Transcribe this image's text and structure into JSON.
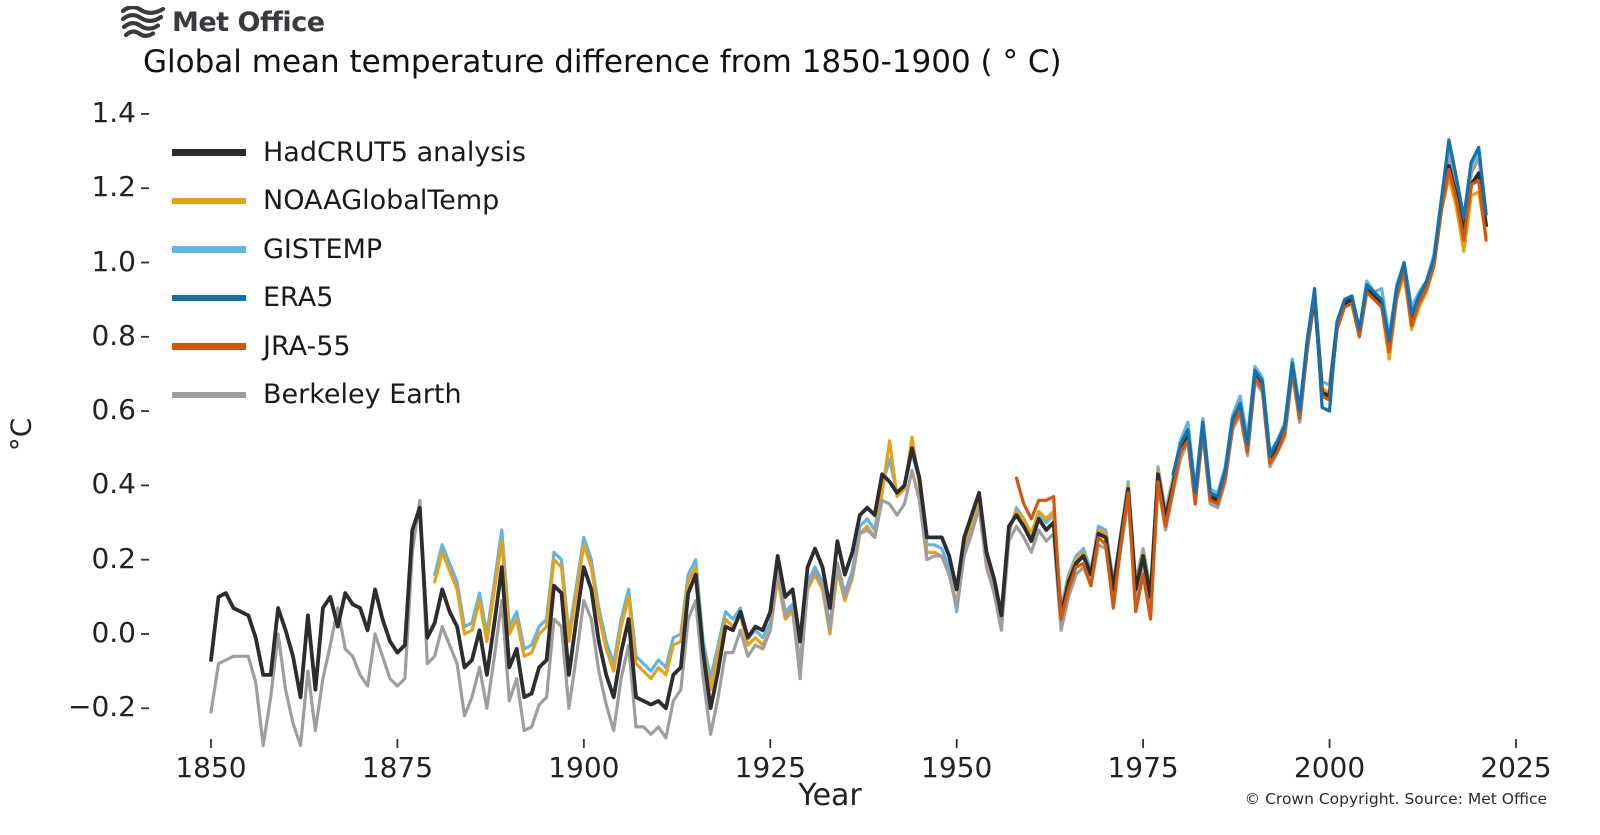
{
  "logo": {
    "brand": "Met Office"
  },
  "header": {
    "title": "Global mean temperature difference from 1850-1900 ( ° C)"
  },
  "footer": {
    "copyright": "© Crown Copyright. Source: Met Office"
  },
  "chart_data": {
    "type": "line",
    "title": "Global mean temperature difference from 1850-1900 ( ° C)",
    "xlabel": "Year",
    "ylabel": "°C",
    "grid": false,
    "legend_position": "upper left",
    "xlim": [
      1845,
      2027
    ],
    "ylim": [
      -0.32,
      1.42
    ],
    "x_ticks": [
      1850,
      1875,
      1900,
      1925,
      1950,
      1975,
      2000,
      2025
    ],
    "y_ticks": [
      1.4,
      1.2,
      1.0,
      0.8,
      0.6,
      0.4,
      0.2,
      0.0,
      -0.2
    ],
    "series": [
      {
        "name": "HadCRUT5 analysis",
        "color": "#2d2d30",
        "start_year": 1850,
        "values": [
          -0.07,
          0.1,
          0.11,
          0.07,
          0.06,
          0.05,
          -0.01,
          -0.11,
          -0.11,
          0.07,
          0.01,
          -0.06,
          -0.17,
          0.05,
          -0.15,
          0.07,
          0.1,
          0.02,
          0.11,
          0.08,
          0.07,
          0.01,
          0.12,
          0.04,
          -0.02,
          -0.05,
          -0.03,
          0.28,
          0.34,
          -0.01,
          0.03,
          0.12,
          0.06,
          0.02,
          -0.09,
          -0.07,
          0.01,
          -0.11,
          0.03,
          0.18,
          -0.09,
          -0.04,
          -0.17,
          -0.16,
          -0.09,
          -0.07,
          0.13,
          0.11,
          -0.11,
          0.04,
          0.18,
          0.12,
          -0.02,
          -0.11,
          -0.17,
          -0.05,
          0.04,
          -0.17,
          -0.18,
          -0.19,
          -0.18,
          -0.2,
          -0.11,
          -0.09,
          0.11,
          0.16,
          -0.05,
          -0.2,
          -0.1,
          0.02,
          0.01,
          0.06,
          -0.01,
          0.02,
          0.01,
          0.06,
          0.21,
          0.1,
          0.12,
          -0.02,
          0.18,
          0.23,
          0.18,
          0.07,
          0.25,
          0.16,
          0.22,
          0.32,
          0.34,
          0.32,
          0.43,
          0.41,
          0.38,
          0.4,
          0.5,
          0.42,
          0.26,
          0.26,
          0.26,
          0.21,
          0.12,
          0.26,
          0.32,
          0.38,
          0.22,
          0.15,
          0.05,
          0.29,
          0.32,
          0.29,
          0.25,
          0.31,
          0.28,
          0.3,
          0.05,
          0.14,
          0.19,
          0.21,
          0.16,
          0.27,
          0.26,
          0.12,
          0.26,
          0.39,
          0.12,
          0.21,
          0.1,
          0.43,
          0.31,
          0.4,
          0.5,
          0.54,
          0.37,
          0.56,
          0.37,
          0.36,
          0.43,
          0.57,
          0.61,
          0.5,
          0.7,
          0.67,
          0.47,
          0.51,
          0.55,
          0.72,
          0.59,
          0.78,
          0.91,
          0.65,
          0.64,
          0.83,
          0.89,
          0.9,
          0.81,
          0.93,
          0.91,
          0.89,
          0.78,
          0.92,
          0.99,
          0.85,
          0.9,
          0.94,
          1.0,
          1.15,
          1.26,
          1.18,
          1.08,
          1.21,
          1.24,
          1.1
        ]
      },
      {
        "name": "NOAAGlobalTemp",
        "color": "#e6a117",
        "start_year": 1880,
        "values": [
          0.14,
          0.22,
          0.17,
          0.12,
          0.0,
          0.01,
          0.09,
          -0.02,
          0.12,
          0.25,
          0.0,
          0.04,
          -0.06,
          -0.05,
          0.0,
          0.02,
          0.2,
          0.18,
          -0.02,
          0.11,
          0.24,
          0.18,
          0.05,
          -0.04,
          -0.1,
          0.02,
          0.1,
          -0.08,
          -0.1,
          -0.12,
          -0.09,
          -0.11,
          -0.03,
          -0.02,
          0.14,
          0.18,
          -0.04,
          -0.15,
          -0.05,
          0.04,
          0.02,
          0.05,
          -0.03,
          -0.01,
          -0.03,
          0.01,
          0.15,
          0.04,
          0.06,
          -0.1,
          0.12,
          0.16,
          0.12,
          0.0,
          0.17,
          0.09,
          0.15,
          0.27,
          0.29,
          0.26,
          0.38,
          0.52,
          0.37,
          0.39,
          0.53,
          0.4,
          0.22,
          0.22,
          0.21,
          0.16,
          0.08,
          0.24,
          0.3,
          0.37,
          0.21,
          0.14,
          0.04,
          0.28,
          0.33,
          0.31,
          0.27,
          0.33,
          0.31,
          0.33,
          0.06,
          0.15,
          0.2,
          0.22,
          0.16,
          0.28,
          0.27,
          0.13,
          0.26,
          0.4,
          0.13,
          0.22,
          0.11,
          0.44,
          0.32,
          0.41,
          0.51,
          0.55,
          0.38,
          0.57,
          0.38,
          0.37,
          0.44,
          0.58,
          0.62,
          0.51,
          0.71,
          0.68,
          0.48,
          0.51,
          0.56,
          0.73,
          0.6,
          0.78,
          0.91,
          0.66,
          0.65,
          0.82,
          0.88,
          0.89,
          0.8,
          0.92,
          0.9,
          0.88,
          0.74,
          0.9,
          0.97,
          0.82,
          0.88,
          0.92,
          0.99,
          1.14,
          1.23,
          1.15,
          1.03,
          1.18,
          1.19,
          1.07
        ]
      },
      {
        "name": "GISTEMP",
        "color": "#5fb4e8",
        "start_year": 1880,
        "values": [
          0.16,
          0.24,
          0.19,
          0.14,
          0.02,
          0.03,
          0.11,
          0.0,
          0.14,
          0.28,
          0.02,
          0.06,
          -0.04,
          -0.03,
          0.02,
          0.04,
          0.22,
          0.2,
          0.0,
          0.13,
          0.26,
          0.2,
          0.07,
          -0.02,
          -0.08,
          0.04,
          0.12,
          -0.06,
          -0.08,
          -0.1,
          -0.07,
          -0.09,
          -0.01,
          0.0,
          0.16,
          0.2,
          -0.02,
          -0.12,
          -0.03,
          0.06,
          0.04,
          0.07,
          -0.01,
          0.01,
          -0.01,
          0.03,
          0.17,
          0.06,
          0.08,
          -0.08,
          0.14,
          0.18,
          0.14,
          0.02,
          0.19,
          0.11,
          0.17,
          0.29,
          0.31,
          0.28,
          0.4,
          0.47,
          0.38,
          0.4,
          0.49,
          0.41,
          0.24,
          0.24,
          0.23,
          0.18,
          0.06,
          0.22,
          0.28,
          0.35,
          0.19,
          0.12,
          0.02,
          0.27,
          0.34,
          0.31,
          0.26,
          0.32,
          0.3,
          0.32,
          0.07,
          0.16,
          0.21,
          0.23,
          0.17,
          0.29,
          0.28,
          0.14,
          0.27,
          0.41,
          0.14,
          0.23,
          0.12,
          0.45,
          0.33,
          0.42,
          0.52,
          0.57,
          0.39,
          0.58,
          0.39,
          0.38,
          0.45,
          0.59,
          0.64,
          0.53,
          0.72,
          0.69,
          0.49,
          0.52,
          0.57,
          0.74,
          0.61,
          0.79,
          0.92,
          0.68,
          0.67,
          0.84,
          0.9,
          0.91,
          0.82,
          0.95,
          0.92,
          0.93,
          0.8,
          0.94,
          1.0,
          0.88,
          0.92,
          0.95,
          1.02,
          1.17,
          1.31,
          1.22,
          1.12,
          1.26,
          1.3,
          1.13
        ]
      },
      {
        "name": "ERA5",
        "color": "#1271b1",
        "start_year": 1979,
        "values": [
          0.43,
          0.51,
          0.55,
          0.38,
          0.57,
          0.38,
          0.37,
          0.44,
          0.58,
          0.62,
          0.51,
          0.71,
          0.68,
          0.48,
          0.52,
          0.56,
          0.73,
          0.6,
          0.79,
          0.93,
          0.61,
          0.6,
          0.84,
          0.9,
          0.91,
          0.82,
          0.94,
          0.92,
          0.9,
          0.79,
          0.93,
          1.0,
          0.86,
          0.91,
          0.95,
          1.01,
          1.17,
          1.33,
          1.23,
          1.12,
          1.27,
          1.31,
          1.13
        ]
      },
      {
        "name": "JRA-55",
        "color": "#d4570e",
        "start_year": 1958,
        "values": [
          0.42,
          0.35,
          0.31,
          0.36,
          0.36,
          0.37,
          0.04,
          0.12,
          0.18,
          0.19,
          0.13,
          0.26,
          0.24,
          0.07,
          0.24,
          0.38,
          0.06,
          0.16,
          0.04,
          0.41,
          0.29,
          0.39,
          0.49,
          0.52,
          0.35,
          0.55,
          0.36,
          0.35,
          0.42,
          0.56,
          0.6,
          0.49,
          0.69,
          0.66,
          0.46,
          0.49,
          0.54,
          0.71,
          0.58,
          0.77,
          0.92,
          0.64,
          0.63,
          0.82,
          0.88,
          0.89,
          0.8,
          0.92,
          0.9,
          0.88,
          0.76,
          0.91,
          0.98,
          0.83,
          0.89,
          0.93,
          0.99,
          1.14,
          1.25,
          1.17,
          1.06,
          1.21,
          1.22,
          1.06
        ]
      },
      {
        "name": "Berkeley Earth",
        "color": "#9e9e9e",
        "start_year": 1850,
        "values": [
          -0.21,
          -0.08,
          -0.07,
          -0.06,
          -0.06,
          -0.06,
          -0.13,
          -0.3,
          -0.17,
          0.0,
          -0.15,
          -0.24,
          -0.3,
          -0.1,
          -0.26,
          -0.12,
          -0.03,
          0.07,
          -0.04,
          -0.06,
          -0.11,
          -0.14,
          0.0,
          -0.06,
          -0.12,
          -0.14,
          -0.12,
          0.22,
          0.36,
          -0.08,
          -0.06,
          0.02,
          -0.03,
          -0.08,
          -0.22,
          -0.17,
          -0.09,
          -0.2,
          -0.06,
          0.09,
          -0.18,
          -0.12,
          -0.26,
          -0.25,
          -0.19,
          -0.17,
          0.04,
          0.02,
          -0.2,
          -0.06,
          0.09,
          0.04,
          -0.1,
          -0.19,
          -0.26,
          -0.12,
          -0.03,
          -0.25,
          -0.25,
          -0.27,
          -0.25,
          -0.28,
          -0.18,
          -0.15,
          0.04,
          0.09,
          -0.12,
          -0.27,
          -0.17,
          -0.05,
          -0.05,
          0.01,
          -0.06,
          -0.03,
          -0.04,
          0.01,
          0.17,
          0.05,
          0.07,
          -0.12,
          0.13,
          0.17,
          0.13,
          0.01,
          0.19,
          0.1,
          0.16,
          0.27,
          0.28,
          0.26,
          0.36,
          0.35,
          0.32,
          0.35,
          0.44,
          0.36,
          0.2,
          0.21,
          0.21,
          0.16,
          0.07,
          0.21,
          0.27,
          0.34,
          0.18,
          0.11,
          0.01,
          0.25,
          0.29,
          0.26,
          0.22,
          0.28,
          0.25,
          0.27,
          0.01,
          0.1,
          0.16,
          0.18,
          0.13,
          0.24,
          0.23,
          0.09,
          0.23,
          0.36,
          0.09,
          0.18,
          0.07,
          0.4,
          0.28,
          0.38,
          0.47,
          0.52,
          0.35,
          0.54,
          0.35,
          0.34,
          0.41,
          0.55,
          0.59,
          0.48,
          0.68,
          0.65,
          0.45,
          0.49,
          0.53,
          0.7,
          0.57,
          0.76,
          0.9,
          0.64,
          0.63,
          0.82,
          0.88,
          0.89,
          0.8,
          0.93,
          0.9,
          0.89,
          0.77,
          0.91,
          0.98,
          0.84,
          0.89,
          0.93,
          1.0,
          1.16,
          1.29,
          1.21,
          1.09,
          1.24,
          1.28,
          1.13
        ]
      }
    ]
  }
}
